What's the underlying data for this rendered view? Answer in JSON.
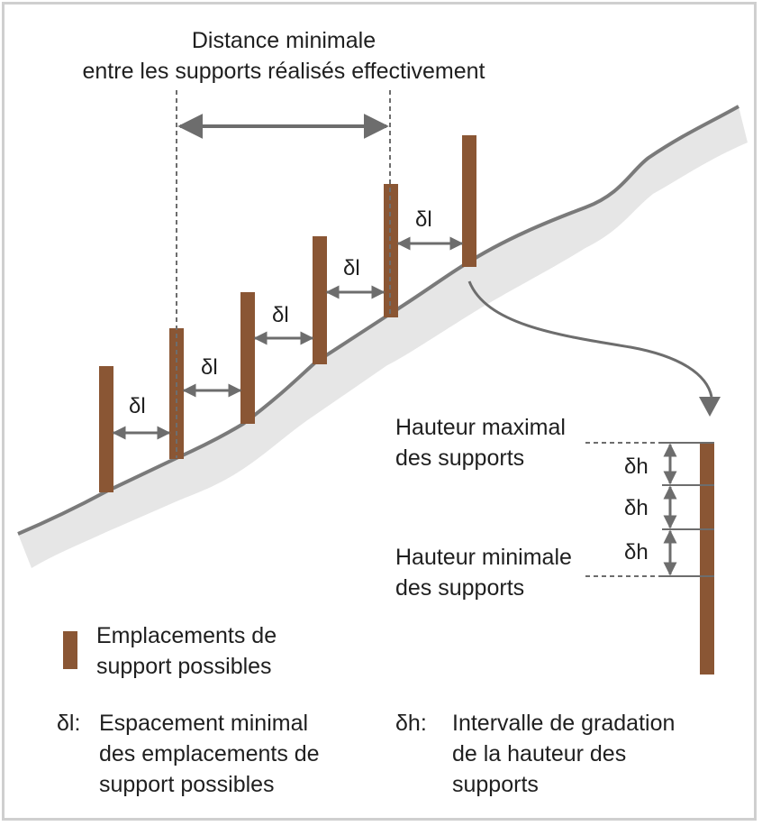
{
  "title": {
    "line1": "Distance minimale",
    "line2": "entre les supports réalisés effectivement"
  },
  "delta_l": "δl",
  "delta_h": "δh",
  "detail": {
    "max_label": "Hauteur maximal\ndes supports",
    "min_label": "Hauteur minimale\ndes supports"
  },
  "legend": {
    "marker_text": "Emplacements de\nsupport possibles",
    "dl_symbol": "δl:",
    "dl_text": "Espacement minimal\ndes emplacements de\nsupport possibles",
    "dh_symbol": "δh:",
    "dh_text": "Intervalle de gradation\nde la hauteur des\nsupports"
  },
  "colors": {
    "support": "#8a5634",
    "ground_fill": "#e6e6e6",
    "ground_line": "#7a7a7a",
    "arrow": "#6d6d6d",
    "frame": "#cfcfcf"
  }
}
